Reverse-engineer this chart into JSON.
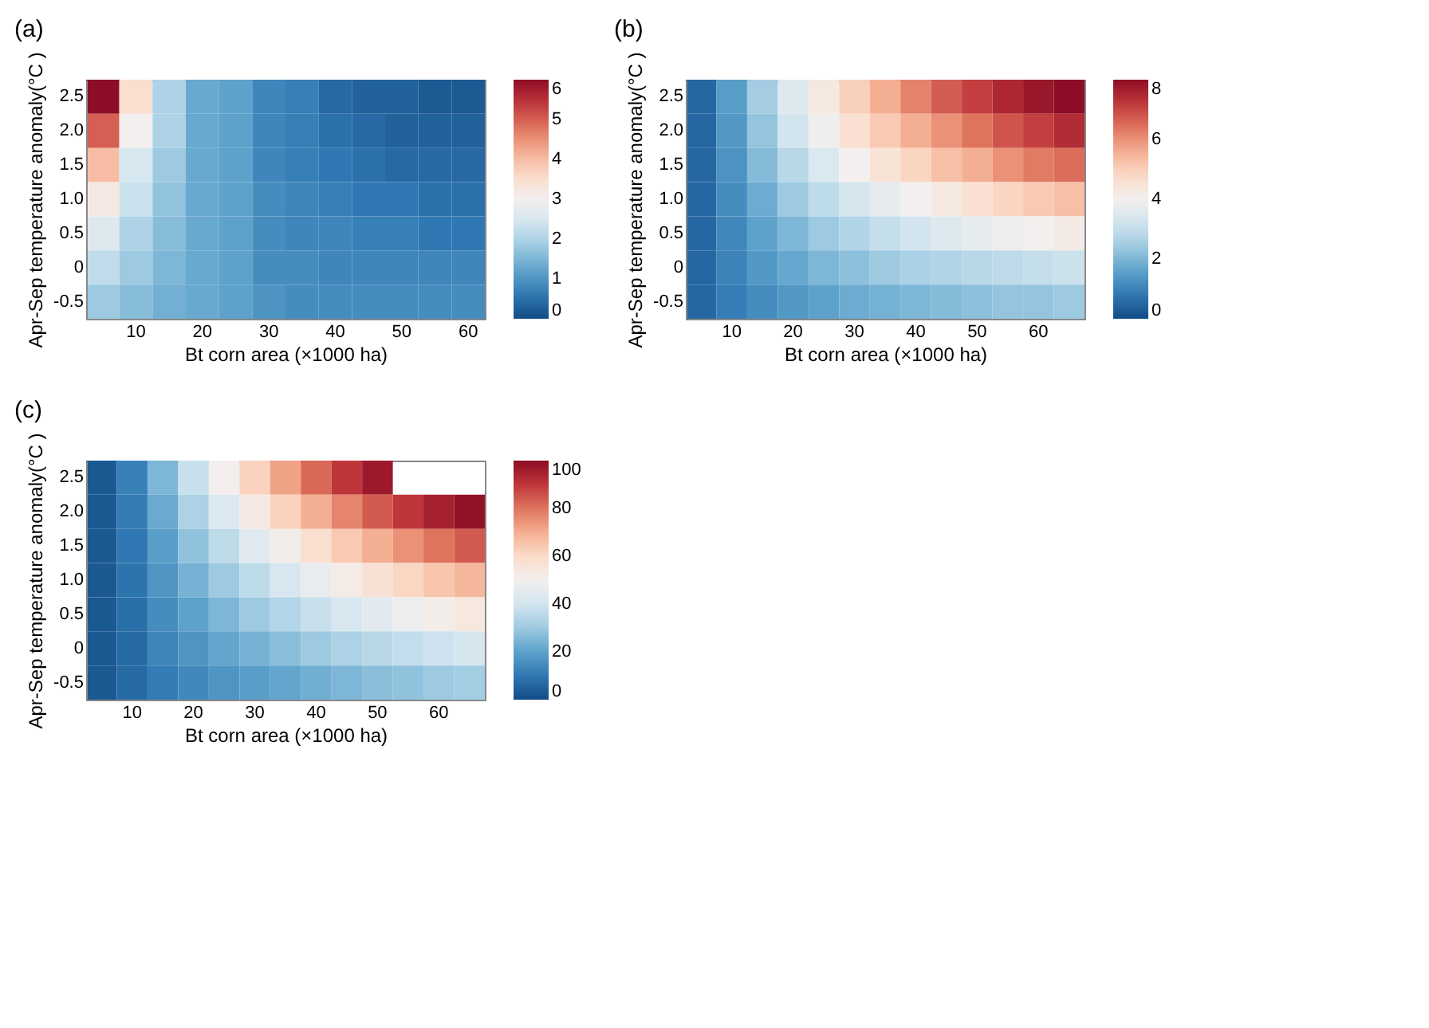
{
  "chart_data": [
    {
      "type": "heatmap",
      "title": "(a)",
      "xlabel": "Bt corn area (×1000 ha)",
      "ylabel": "Apr-Sep temperature anomaly(°C )",
      "categories": [
        null,
        "10",
        null,
        "20",
        null,
        "30",
        null,
        "40",
        null,
        "50",
        null,
        "60"
      ],
      "y_categories": [
        "2.5",
        "2.0",
        "1.5",
        "1.0",
        "0.5",
        "0",
        "-0.5"
      ],
      "cells": [
        [
          6,
          3.5,
          2.0,
          1.3,
          1.2,
          0.8,
          0.7,
          0.4,
          0.3,
          0.3,
          0.2,
          0.2
        ],
        [
          5,
          3.0,
          2.0,
          1.3,
          1.2,
          0.8,
          0.7,
          0.5,
          0.4,
          0.3,
          0.3,
          0.3
        ],
        [
          4,
          2.5,
          1.8,
          1.3,
          1.2,
          0.8,
          0.7,
          0.6,
          0.5,
          0.4,
          0.4,
          0.4
        ],
        [
          3.2,
          2.3,
          1.7,
          1.3,
          1.2,
          0.9,
          0.8,
          0.7,
          0.6,
          0.6,
          0.5,
          0.5
        ],
        [
          2.6,
          2.0,
          1.6,
          1.3,
          1.2,
          0.9,
          0.8,
          0.8,
          0.7,
          0.7,
          0.6,
          0.6
        ],
        [
          2.2,
          1.8,
          1.5,
          1.3,
          1.2,
          0.9,
          0.9,
          0.8,
          0.8,
          0.8,
          0.8,
          0.8
        ],
        [
          1.8,
          1.6,
          1.4,
          1.3,
          1.2,
          1.0,
          0.9,
          0.9,
          0.9,
          0.9,
          0.9,
          0.9
        ]
      ],
      "clim": [
        0,
        6
      ],
      "cticks": [
        0,
        1,
        2,
        3,
        4,
        5,
        6
      ]
    },
    {
      "type": "heatmap",
      "title": "(b)",
      "xlabel": "Bt corn area (×1000 ha)",
      "ylabel": "Apr-Sep temperature anomaly(°C )",
      "categories": [
        null,
        "10",
        null,
        "20",
        null,
        "30",
        null,
        "40",
        null,
        "50",
        null,
        "60",
        null
      ],
      "y_categories": [
        "2.5",
        "2.0",
        "1.5",
        "1.0",
        "0.5",
        "0",
        "-0.5"
      ],
      "cells": [
        [
          0.5,
          1.5,
          2.5,
          3.5,
          4.3,
          5.0,
          5.6,
          6.2,
          6.7,
          7.1,
          7.5,
          7.8,
          8.0
        ],
        [
          0.5,
          1.4,
          2.3,
          3.2,
          3.9,
          4.6,
          5.1,
          5.6,
          6.0,
          6.4,
          6.8,
          7.1,
          7.4
        ],
        [
          0.5,
          1.3,
          2.1,
          2.8,
          3.4,
          4.0,
          4.5,
          4.9,
          5.3,
          5.6,
          6.0,
          6.3,
          6.5
        ],
        [
          0.5,
          1.2,
          1.8,
          2.4,
          2.9,
          3.3,
          3.7,
          4.0,
          4.3,
          4.6,
          4.9,
          5.1,
          5.3
        ],
        [
          0.5,
          1.1,
          1.6,
          2.0,
          2.4,
          2.7,
          3.0,
          3.2,
          3.5,
          3.7,
          3.9,
          4.0,
          4.2
        ],
        [
          0.5,
          1.0,
          1.4,
          1.7,
          2.0,
          2.2,
          2.4,
          2.6,
          2.7,
          2.8,
          2.9,
          3.0,
          3.1
        ],
        [
          0.5,
          0.9,
          1.2,
          1.4,
          1.6,
          1.8,
          1.9,
          2.0,
          2.1,
          2.2,
          2.3,
          2.3,
          2.4
        ]
      ],
      "clim": [
        0,
        8
      ],
      "cticks": [
        0,
        2,
        4,
        6,
        8
      ]
    },
    {
      "type": "heatmap",
      "title": "(c)",
      "xlabel": "Bt corn area (×1000 ha)",
      "ylabel": "Apr-Sep temperature anomaly(°C )",
      "categories": [
        null,
        "10",
        null,
        "20",
        null,
        "30",
        null,
        "40",
        null,
        "50",
        null,
        "60",
        null
      ],
      "y_categories": [
        "2.5",
        "2.0",
        "1.5",
        "1.0",
        "0.5",
        "0",
        "-0.5"
      ],
      "cells": [
        [
          3,
          12,
          25,
          38,
          50,
          62,
          72,
          82,
          90,
          97,
          null,
          null,
          null
        ],
        [
          3,
          11,
          22,
          33,
          43,
          53,
          62,
          70,
          77,
          84,
          90,
          95,
          99
        ],
        [
          3,
          10,
          19,
          28,
          36,
          44,
          51,
          58,
          64,
          70,
          75,
          80,
          84
        ],
        [
          3,
          9,
          17,
          24,
          30,
          36,
          42,
          47,
          52,
          57,
          61,
          65,
          68
        ],
        [
          3,
          8,
          15,
          20,
          25,
          30,
          34,
          38,
          42,
          45,
          48,
          51,
          54
        ],
        [
          3,
          7,
          13,
          17,
          21,
          24,
          27,
          30,
          33,
          35,
          37,
          39,
          41
        ],
        [
          3,
          7,
          11,
          14,
          17,
          19,
          21,
          23,
          25,
          27,
          28,
          30,
          31
        ]
      ],
      "clim": [
        0,
        100
      ],
      "cticks": [
        0,
        20,
        40,
        60,
        80,
        100
      ]
    }
  ]
}
